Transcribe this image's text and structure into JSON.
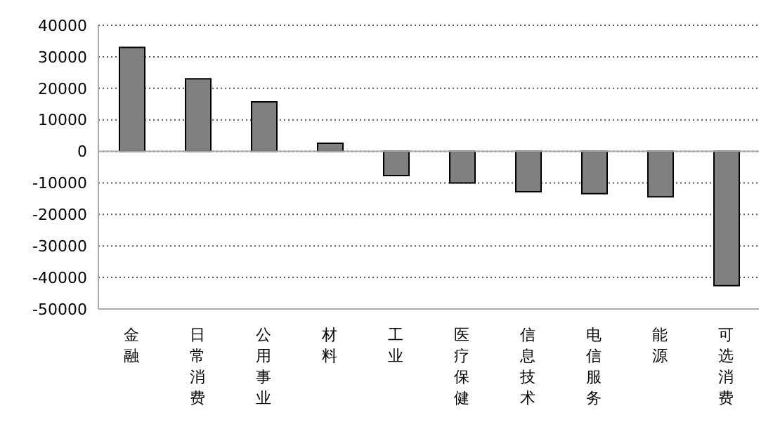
{
  "chart_data": {
    "type": "bar",
    "categories": [
      "金融",
      "日常消费",
      "公用事业",
      "材料",
      "工业",
      "医疗保健",
      "信息技术",
      "电信服务",
      "能源",
      "可选消费"
    ],
    "values": [
      33000,
      23000,
      15700,
      2600,
      -7700,
      -10000,
      -12800,
      -13400,
      -14400,
      -42600
    ],
    "color": "#808080",
    "ylim": [
      -50000,
      40000
    ],
    "yticks": [
      -50000,
      -40000,
      -30000,
      -20000,
      -10000,
      0,
      10000,
      20000,
      30000,
      40000
    ],
    "grid": "y"
  }
}
